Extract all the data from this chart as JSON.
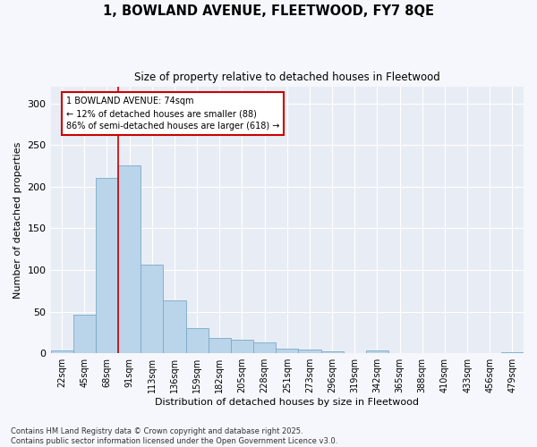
{
  "title": "1, BOWLAND AVENUE, FLEETWOOD, FY7 8QE",
  "subtitle": "Size of property relative to detached houses in Fleetwood",
  "xlabel": "Distribution of detached houses by size in Fleetwood",
  "ylabel": "Number of detached properties",
  "bar_color": "#bad4ea",
  "bar_edge_color": "#7aaac8",
  "plot_bg_color": "#e8edf5",
  "fig_bg_color": "#f5f7fc",
  "grid_color": "#ffffff",
  "categories": [
    "22sqm",
    "45sqm",
    "68sqm",
    "91sqm",
    "113sqm",
    "136sqm",
    "159sqm",
    "182sqm",
    "205sqm",
    "228sqm",
    "251sqm",
    "273sqm",
    "296sqm",
    "319sqm",
    "342sqm",
    "365sqm",
    "388sqm",
    "410sqm",
    "433sqm",
    "456sqm",
    "479sqm"
  ],
  "values": [
    3,
    46,
    211,
    226,
    106,
    63,
    30,
    18,
    16,
    13,
    6,
    4,
    2,
    0,
    3,
    0,
    0,
    0,
    0,
    0,
    1
  ],
  "ylim": [
    0,
    320
  ],
  "yticks": [
    0,
    50,
    100,
    150,
    200,
    250,
    300
  ],
  "annotation_text": "1 BOWLAND AVENUE: 74sqm\n← 12% of detached houses are smaller (88)\n86% of semi-detached houses are larger (618) →",
  "annotation_box_color": "#ffffff",
  "annotation_box_edge_color": "#cc0000",
  "vline_color": "#cc0000",
  "vline_bin": 2,
  "footer_text": "Contains HM Land Registry data © Crown copyright and database right 2025.\nContains public sector information licensed under the Open Government Licence v3.0."
}
